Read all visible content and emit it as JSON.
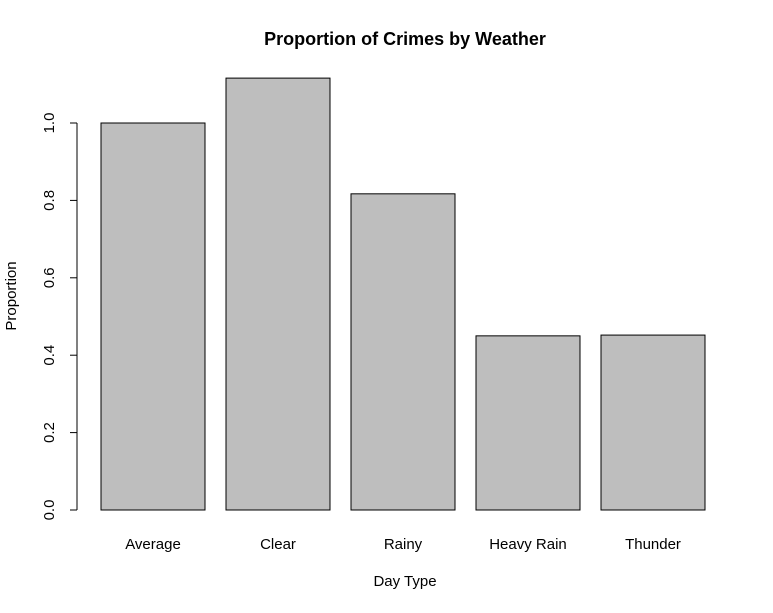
{
  "chart_data": {
    "type": "bar",
    "title": "Proportion of Crimes by Weather",
    "xlabel": "Day Type",
    "ylabel": "Proportion",
    "categories": [
      "Average",
      "Clear",
      "Rainy",
      "Heavy Rain",
      "Thunder"
    ],
    "values": [
      1.0,
      1.116,
      0.817,
      0.45,
      0.452
    ],
    "color": "#bebebe",
    "ylim": [
      0,
      1.16
    ],
    "yticks": [
      {
        "value": 0,
        "label": "0.0"
      },
      0.2,
      0.4,
      0.6,
      0.8,
      {
        "value": 1,
        "label": "1.0"
      }
    ]
  }
}
